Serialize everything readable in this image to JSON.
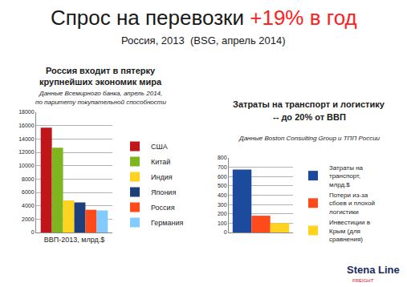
{
  "title": {
    "text": "Спрос на перевозки",
    "highlight": "+19% в год"
  },
  "subtitle": "Россия, 2013  (BSG, апрель 2014)",
  "chart_data": [
    {
      "type": "bar",
      "title": [
        "Россия входит в пятерку",
        "крупнейших экономик мира"
      ],
      "subtitle": [
        "Данные Всемирного банка, апрель 2014,",
        "по паритету покупательной способности"
      ],
      "categories": [
        "ВВП-2013, млрд.$"
      ],
      "series": [
        {
          "name": "США",
          "color": "#c0151b",
          "values": [
            15700
          ]
        },
        {
          "name": "Китай",
          "color": "#7fb51f",
          "values": [
            12700
          ]
        },
        {
          "name": "Индия",
          "color": "#ffd320",
          "values": [
            4800
          ]
        },
        {
          "name": "Япония",
          "color": "#1f3f7a",
          "values": [
            4500
          ]
        },
        {
          "name": "Россия",
          "color": "#ff4a1c",
          "values": [
            3400
          ]
        },
        {
          "name": "Германия",
          "color": "#83caff",
          "values": [
            3300
          ]
        }
      ],
      "ylim": [
        0,
        18000
      ],
      "yticks": [
        0,
        2000,
        4000,
        6000,
        8000,
        10000,
        12000,
        14000,
        16000,
        18000
      ],
      "grid": true,
      "legend": "right"
    },
    {
      "type": "bar",
      "title": [
        "Затраты на транспорт и логистику",
        "-- до 20% от ВВП"
      ],
      "subtitle": [
        "Данные Boston Consulting Group и ТПП России"
      ],
      "categories": [
        null
      ],
      "series": [
        {
          "name": "Затраты на транспорт, млрд.$",
          "color": "#1c4a9c",
          "values": [
            675
          ]
        },
        {
          "name": "Потери из-за сбоев и плохой логистики",
          "color": "#ff4a1c",
          "values": [
            180
          ]
        },
        {
          "name": "Инвестиции в Крым (для сравнения)",
          "color": "#ffd320",
          "values": [
            100
          ]
        }
      ],
      "ylim": [
        0,
        800
      ],
      "yticks": [
        0,
        100,
        200,
        300,
        400,
        500,
        600,
        700,
        800
      ],
      "grid": true,
      "legend": "right",
      "tick_labels": "y"
    }
  ],
  "logo": {
    "name": "Stena Line",
    "tag": "FREIGHT"
  }
}
